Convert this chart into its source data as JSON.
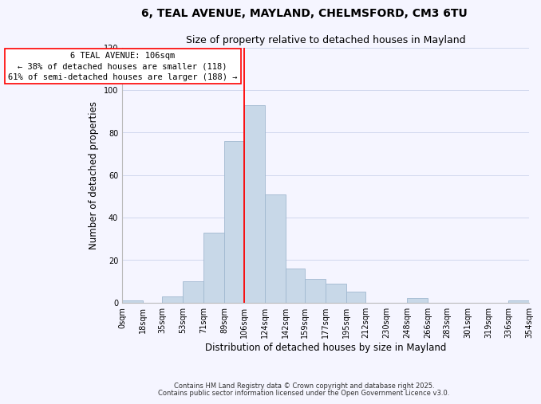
{
  "title": "6, TEAL AVENUE, MAYLAND, CHELMSFORD, CM3 6TU",
  "subtitle": "Size of property relative to detached houses in Mayland",
  "xlabel": "Distribution of detached houses by size in Mayland",
  "ylabel": "Number of detached properties",
  "footer_line1": "Contains HM Land Registry data © Crown copyright and database right 2025.",
  "footer_line2": "Contains public sector information licensed under the Open Government Licence v3.0.",
  "bin_labels": [
    "0sqm",
    "18sqm",
    "35sqm",
    "53sqm",
    "71sqm",
    "89sqm",
    "106sqm",
    "124sqm",
    "142sqm",
    "159sqm",
    "177sqm",
    "195sqm",
    "212sqm",
    "230sqm",
    "248sqm",
    "266sqm",
    "283sqm",
    "301sqm",
    "319sqm",
    "336sqm",
    "354sqm"
  ],
  "bin_edges": [
    0,
    18,
    35,
    53,
    71,
    89,
    106,
    124,
    142,
    159,
    177,
    195,
    212,
    230,
    248,
    266,
    283,
    301,
    319,
    336,
    354
  ],
  "bar_heights": [
    1,
    0,
    3,
    10,
    33,
    76,
    93,
    51,
    16,
    11,
    9,
    5,
    0,
    0,
    2,
    0,
    0,
    0,
    0,
    1
  ],
  "bar_color": "#c8d8e8",
  "bar_edge_color": "#a0b8d0",
  "vline_x": 106,
  "vline_color": "red",
  "annotation_line1": "6 TEAL AVENUE: 106sqm",
  "annotation_line2": "← 38% of detached houses are smaller (118)",
  "annotation_line3": "61% of semi-detached houses are larger (188) →",
  "ylim": [
    0,
    120
  ],
  "yticks": [
    0,
    20,
    40,
    60,
    80,
    100,
    120
  ],
  "bg_color": "#f5f5ff",
  "grid_color": "#d0d8ee",
  "title_fontsize": 10,
  "subtitle_fontsize": 9,
  "axis_label_fontsize": 8.5,
  "tick_fontsize": 7,
  "footer_fontsize": 6,
  "annot_fontsize": 7.5
}
